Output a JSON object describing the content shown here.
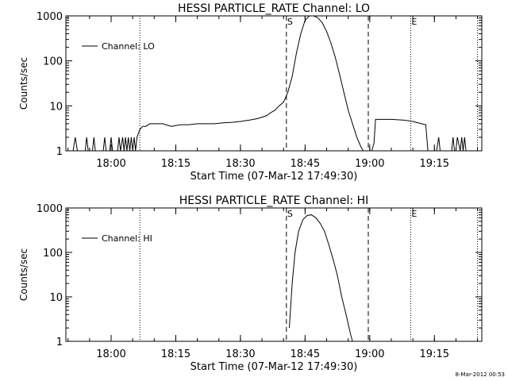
{
  "footer_stamp": "8-Mar-2012 00:53",
  "chart_data": [
    {
      "type": "line",
      "title": "HESSI PARTICLE_RATE Channel: LO",
      "xlabel": "Start Time (07-Mar-12 17:49:30)",
      "ylabel": "Counts/sec",
      "y_scale": "log",
      "ylim": [
        1,
        1000
      ],
      "xlim": [
        "17:49:30",
        "19:26:00"
      ],
      "x_tick_labels": [
        "18:00",
        "18:15",
        "18:30",
        "18:45",
        "19:00",
        "19:15"
      ],
      "y_tick_labels": [
        "1",
        "10",
        "100",
        "1000"
      ],
      "legend": {
        "label": "Channel: LO",
        "placement": "top-left"
      },
      "markers": [
        {
          "time": "18:06:40",
          "style": "dotted",
          "label": ""
        },
        {
          "time": "18:40:40",
          "style": "dashed",
          "label": "S"
        },
        {
          "time": "18:59:40",
          "style": "dashed",
          "label": ""
        },
        {
          "time": "19:09:30",
          "style": "dotted",
          "label": "E"
        },
        {
          "time": "19:25:00",
          "style": "dotted",
          "label": ""
        }
      ],
      "series": [
        {
          "name": "Channel: LO",
          "x": [
            "17:51:10",
            "17:51:40",
            "17:52:10",
            "17:54:00",
            "17:54:20",
            "17:54:40",
            "17:55:40",
            "17:56:00",
            "17:56:20",
            "17:58:10",
            "17:58:30",
            "17:58:50",
            "17:59:40",
            "18:00:00",
            "18:00:20",
            "18:01:30",
            "18:01:50",
            "18:02:10",
            "18:02:40",
            "18:03:00",
            "18:03:20",
            "18:03:40",
            "18:04:00",
            "18:04:20",
            "18:04:40",
            "18:05:00",
            "18:05:20",
            "18:05:40",
            "18:06:00",
            "18:06:40",
            "18:07:20",
            "18:08:00",
            "18:09:00",
            "18:10:00",
            "18:12:00",
            "18:14:00",
            "18:16:00",
            "18:18:00",
            "18:20:00",
            "18:22:00",
            "18:24:00",
            "18:26:00",
            "18:28:00",
            "18:30:00",
            "18:32:00",
            "18:34:00",
            "18:36:00",
            "18:37:00",
            "18:38:00",
            "18:39:00",
            "18:40:00",
            "18:41:00",
            "18:42:00",
            "18:43:00",
            "18:44:00",
            "18:45:00",
            "18:46:00",
            "18:47:00",
            "18:48:00",
            "18:49:00",
            "18:50:00",
            "18:51:00",
            "18:52:00",
            "18:53:00",
            "18:54:00",
            "18:55:00",
            "18:56:00",
            "18:57:00",
            "18:58:00",
            "18:58:30",
            "18:59:00",
            "18:59:40",
            "19:00:30",
            "19:01:00",
            "19:01:20",
            "19:02:00",
            "19:05:00",
            "19:08:00",
            "19:10:00",
            "19:12:00",
            "19:13:00",
            "19:13:30",
            "19:14:30",
            "19:15:30",
            "19:16:00",
            "19:16:20",
            "19:17:00",
            "19:18:00",
            "19:19:00",
            "19:19:20",
            "19:19:40",
            "19:20:00",
            "19:20:20",
            "19:21:00",
            "19:21:20",
            "19:21:40",
            "19:22:00",
            "19:22:20",
            "19:23:00"
          ],
          "y": [
            1,
            2,
            1,
            1,
            2,
            1,
            1,
            2,
            1,
            1,
            2,
            1,
            1,
            2,
            1,
            1,
            2,
            1,
            2,
            1,
            2,
            1,
            2,
            1,
            2,
            1,
            2,
            1,
            2,
            3,
            3.5,
            3.5,
            4,
            4,
            4,
            3.5,
            3.8,
            3.8,
            4,
            4,
            4,
            4.2,
            4.3,
            4.5,
            4.8,
            5.2,
            6,
            7,
            8,
            10,
            12,
            20,
            45,
            150,
            400,
            800,
            1000,
            1000,
            900,
            700,
            450,
            250,
            120,
            50,
            20,
            8,
            4,
            2,
            1.2,
            1,
            1,
            1,
            1,
            1.5,
            5,
            5,
            5,
            4.8,
            4.5,
            4,
            3.8,
            1,
            1,
            1,
            2,
            1,
            1,
            1,
            1,
            2,
            1,
            1,
            2,
            1,
            2,
            1,
            2,
            1,
            1
          ]
        }
      ]
    },
    {
      "type": "line",
      "title": "HESSI PARTICLE_RATE Channel: HI",
      "xlabel": "Start Time (07-Mar-12 17:49:30)",
      "ylabel": "Counts/sec",
      "y_scale": "log",
      "ylim": [
        1,
        1000
      ],
      "xlim": [
        "17:49:30",
        "19:26:00"
      ],
      "x_tick_labels": [
        "18:00",
        "18:15",
        "18:30",
        "18:45",
        "19:00",
        "19:15"
      ],
      "y_tick_labels": [
        "1",
        "10",
        "100",
        "1000"
      ],
      "legend": {
        "label": "Channel: HI",
        "placement": "top-left"
      },
      "markers": [
        {
          "time": "18:06:40",
          "style": "dotted",
          "label": ""
        },
        {
          "time": "18:40:40",
          "style": "dashed",
          "label": "S"
        },
        {
          "time": "18:59:40",
          "style": "dashed",
          "label": ""
        },
        {
          "time": "19:09:30",
          "style": "dotted",
          "label": "E"
        },
        {
          "time": "19:25:00",
          "style": "dotted",
          "label": ""
        }
      ],
      "series": [
        {
          "name": "Channel: HI",
          "x": [
            "18:41:20",
            "18:42:00",
            "18:42:40",
            "18:43:30",
            "18:44:30",
            "18:45:30",
            "18:46:30",
            "18:47:30",
            "18:48:30",
            "18:49:30",
            "18:50:30",
            "18:51:30",
            "18:52:30",
            "18:53:30",
            "18:54:30",
            "18:55:30",
            "18:56:00"
          ],
          "y": [
            2,
            20,
            100,
            300,
            550,
            680,
            700,
            600,
            450,
            300,
            150,
            70,
            30,
            10,
            4,
            1.5,
            1
          ]
        }
      ]
    }
  ]
}
